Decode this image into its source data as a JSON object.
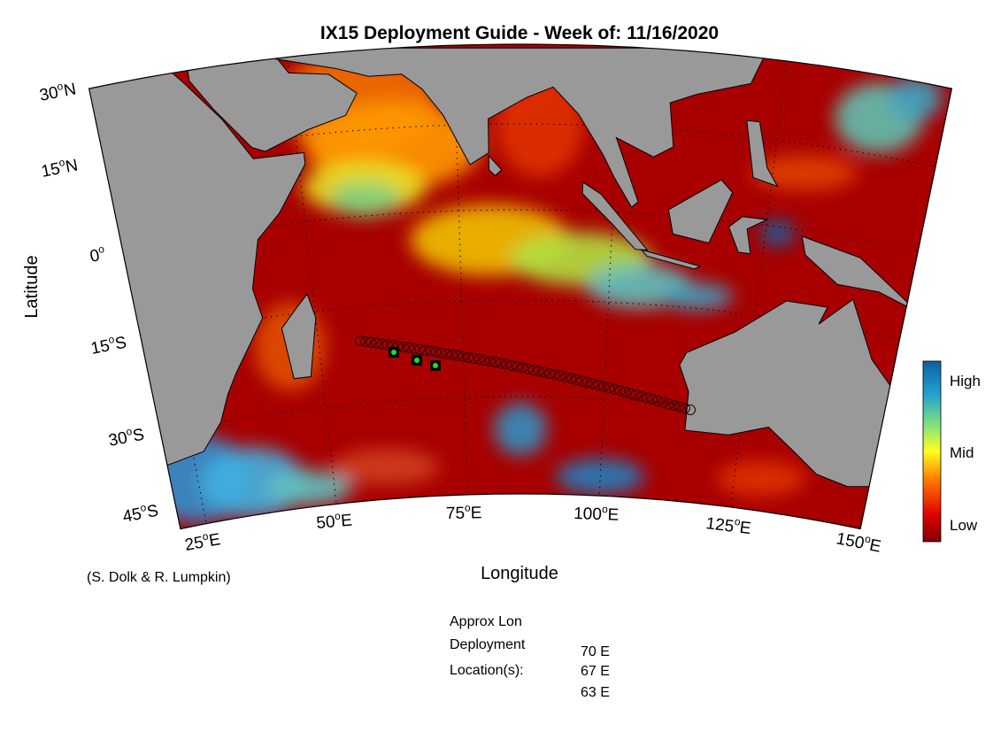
{
  "title": "IX15 Deployment Guide - Week of: 11/16/2020",
  "axes": {
    "y_label": "Latitude",
    "x_label": "Longitude",
    "lat_labels": [
      {
        "num": "30",
        "deg": "o",
        "hem": "N"
      },
      {
        "num": "15",
        "deg": "o",
        "hem": "N"
      },
      {
        "num": "0",
        "deg": "o"
      },
      {
        "num": "15",
        "deg": "o",
        "hem": "S"
      },
      {
        "num": "30",
        "deg": "o",
        "hem": "S"
      },
      {
        "num": "45",
        "deg": "o",
        "hem": "S"
      }
    ],
    "lon_labels": [
      {
        "num": "25",
        "deg": "o",
        "hem": "E"
      },
      {
        "num": "50",
        "deg": "o",
        "hem": "E"
      },
      {
        "num": "75",
        "deg": "o",
        "hem": "E"
      },
      {
        "num": "100",
        "deg": "o",
        "hem": "E"
      },
      {
        "num": "125",
        "deg": "o",
        "hem": "E"
      },
      {
        "num": "150",
        "deg": "o",
        "hem": "E"
      }
    ]
  },
  "colorbar": {
    "labels": [
      "High",
      "Mid",
      "Low"
    ]
  },
  "credit": "(S. Dolk & R. Lumpkin)",
  "deployment": {
    "heading": [
      "Approx Lon",
      "Deployment",
      "Location(s):"
    ],
    "locations": [
      "70 E",
      "67 E",
      "63 E"
    ]
  }
}
